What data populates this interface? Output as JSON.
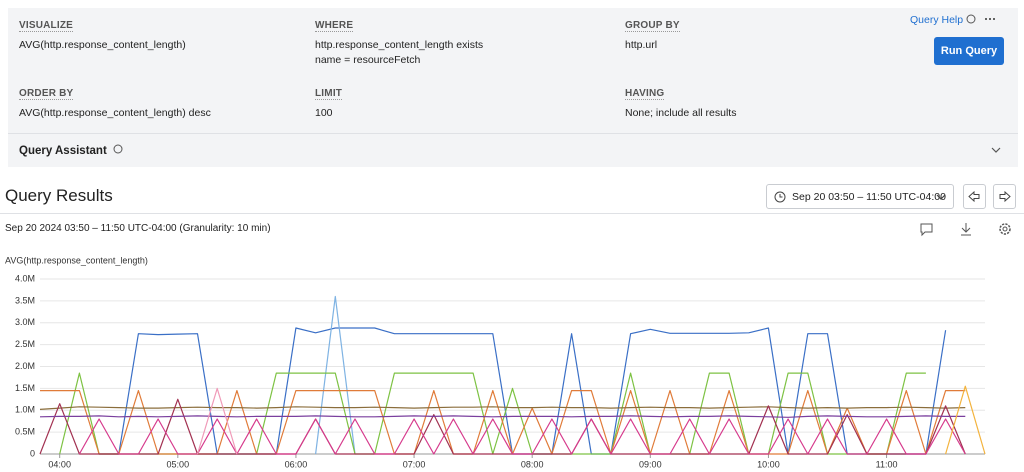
{
  "query_builder": {
    "help": "Query Help",
    "clauses": [
      {
        "label": "VISUALIZE",
        "values": [
          "AVG(http.response_content_length)"
        ]
      },
      {
        "label": "WHERE",
        "values": [
          "http.response_content_length exists",
          "name = resourceFetch"
        ]
      },
      {
        "label": "GROUP BY",
        "values": [
          "http.url"
        ]
      },
      {
        "label": "ORDER BY",
        "values": [
          "AVG(http.response_content_length) desc"
        ]
      },
      {
        "label": "LIMIT",
        "values": [
          "100"
        ]
      },
      {
        "label": "HAVING",
        "values": [
          "None; include all results"
        ]
      }
    ],
    "run_button": "Run Query",
    "assistant": "Query Assistant"
  },
  "results": {
    "title": "Query Results",
    "time_range": "Sep 20 03:50 – 11:50 UTC-04:00",
    "summary": "Sep 20 2024 03:50 – 11:50 UTC-04:00 (Granularity: 10 min)"
  },
  "chart_data": {
    "type": "line",
    "y_label": "AVG(http.response_content_length)",
    "x": [
      "03:50",
      "04:00",
      "04:10",
      "04:20",
      "04:30",
      "04:40",
      "04:50",
      "05:00",
      "05:10",
      "05:20",
      "05:30",
      "05:40",
      "05:50",
      "06:00",
      "06:10",
      "06:20",
      "06:30",
      "06:40",
      "06:50",
      "07:00",
      "07:10",
      "07:20",
      "07:30",
      "07:40",
      "07:50",
      "08:00",
      "08:10",
      "08:20",
      "08:30",
      "08:40",
      "08:50",
      "09:00",
      "09:10",
      "09:20",
      "09:30",
      "09:40",
      "09:50",
      "10:00",
      "10:10",
      "10:20",
      "10:30",
      "10:40",
      "10:50",
      "11:00",
      "11:10",
      "11:20",
      "11:30",
      "11:40",
      "11:50"
    ],
    "xlim": [
      "03:50",
      "11:50"
    ],
    "xticks": [
      "04:00",
      "05:00",
      "06:00",
      "07:00",
      "08:00",
      "09:00",
      "10:00",
      "11:00"
    ],
    "ylim": [
      0,
      4000000
    ],
    "yticks": [
      0,
      {
        "value": 500000,
        "label": "0.5M"
      },
      {
        "value": 1000000,
        "label": "1.0M"
      },
      {
        "value": 1500000,
        "label": "1.5M"
      },
      {
        "value": 2000000,
        "label": "2.0M"
      },
      {
        "value": 2500000,
        "label": "2.5M"
      },
      {
        "value": 3000000,
        "label": "3.0M"
      },
      {
        "value": 3500000,
        "label": "3.5M"
      },
      {
        "value": 4000000,
        "label": "4.0M"
      }
    ],
    "grid": true,
    "series": [
      {
        "color": "#3a6fc6",
        "values": [
          null,
          null,
          null,
          0,
          0,
          2750000,
          2730000,
          2740000,
          2750000,
          0,
          0,
          0,
          0,
          2880000,
          2770000,
          2880000,
          2880000,
          2880000,
          2750000,
          2750000,
          2750000,
          2750000,
          2750000,
          2750000,
          0,
          0,
          0,
          2750000,
          0,
          0,
          2750000,
          2850000,
          2760000,
          2760000,
          2760000,
          2760000,
          2770000,
          2880000,
          0,
          2750000,
          2750000,
          0,
          0,
          0,
          0,
          0,
          2830000,
          null,
          null
        ]
      },
      {
        "color": "#7fb3e3",
        "values": [
          null,
          null,
          null,
          null,
          null,
          null,
          null,
          null,
          null,
          null,
          null,
          null,
          null,
          null,
          0,
          3600000,
          0,
          null,
          null,
          null,
          null,
          null,
          null,
          null,
          null,
          null,
          null,
          null,
          null,
          null,
          null,
          null,
          null,
          null,
          null,
          null,
          null,
          null,
          null,
          null,
          null,
          null,
          null,
          null,
          null,
          null,
          null,
          null,
          null
        ]
      },
      {
        "color": "#7dc243",
        "values": [
          null,
          0,
          1850000,
          0,
          0,
          0,
          0,
          0,
          0,
          0,
          0,
          0,
          1850000,
          1850000,
          1850000,
          1850000,
          0,
          0,
          1850000,
          1850000,
          1850000,
          1850000,
          1850000,
          0,
          1500000,
          0,
          0,
          0,
          0,
          0,
          1850000,
          0,
          0,
          0,
          1850000,
          1850000,
          0,
          0,
          1850000,
          1850000,
          0,
          0,
          0,
          0,
          1850000,
          1850000,
          null,
          null,
          null
        ]
      },
      {
        "color": "#e07b39",
        "values": [
          1450000,
          1450000,
          1450000,
          0,
          0,
          1450000,
          0,
          0,
          0,
          0,
          1450000,
          0,
          0,
          1450000,
          1450000,
          1450000,
          1450000,
          1450000,
          0,
          0,
          1450000,
          0,
          0,
          1450000,
          0,
          1050000,
          0,
          1450000,
          1450000,
          0,
          1450000,
          0,
          1450000,
          0,
          0,
          1450000,
          0,
          0,
          0,
          1450000,
          0,
          1050000,
          0,
          0,
          1450000,
          0,
          1450000,
          1450000,
          null
        ]
      },
      {
        "color": "#8a6d3b",
        "values": [
          1020000,
          1050000,
          1080000,
          1070000,
          1060000,
          1050000,
          1050000,
          1060000,
          1070000,
          1060000,
          1060000,
          1050000,
          1060000,
          1080000,
          1070000,
          1060000,
          1060000,
          1070000,
          1060000,
          1050000,
          1060000,
          1070000,
          1070000,
          1080000,
          1060000,
          1060000,
          1070000,
          1060000,
          1060000,
          1050000,
          1060000,
          1070000,
          1060000,
          1060000,
          1050000,
          1060000,
          1070000,
          1080000,
          1060000,
          1050000,
          1060000,
          1050000,
          1060000,
          1060000,
          1070000,
          1060000,
          1050000,
          1060000,
          null
        ]
      },
      {
        "color": "#a23151",
        "values": [
          0,
          1150000,
          0,
          0,
          0,
          0,
          0,
          1250000,
          0,
          0,
          0,
          0,
          0,
          0,
          800000,
          0,
          0,
          0,
          0,
          0,
          900000,
          0,
          0,
          0,
          0,
          0,
          0,
          0,
          800000,
          0,
          0,
          0,
          0,
          0,
          0,
          0,
          0,
          1100000,
          0,
          0,
          0,
          900000,
          0,
          0,
          0,
          0,
          1100000,
          0,
          null
        ]
      },
      {
        "color": "#7a3f9e",
        "values": [
          850000,
          860000,
          860000,
          870000,
          850000,
          860000,
          850000,
          860000,
          870000,
          860000,
          850000,
          860000,
          860000,
          860000,
          870000,
          860000,
          850000,
          850000,
          860000,
          870000,
          860000,
          870000,
          860000,
          850000,
          860000,
          860000,
          860000,
          850000,
          860000,
          860000,
          870000,
          860000,
          850000,
          860000,
          860000,
          870000,
          860000,
          850000,
          840000,
          860000,
          870000,
          860000,
          850000,
          850000,
          860000,
          870000,
          860000,
          860000,
          null
        ]
      },
      {
        "color": "#d63a8c",
        "values": [
          null,
          null,
          0,
          800000,
          0,
          0,
          800000,
          0,
          0,
          800000,
          0,
          800000,
          0,
          0,
          800000,
          0,
          800000,
          0,
          0,
          800000,
          0,
          800000,
          0,
          800000,
          0,
          0,
          800000,
          0,
          800000,
          0,
          800000,
          0,
          0,
          800000,
          0,
          800000,
          0,
          0,
          800000,
          0,
          800000,
          0,
          0,
          800000,
          0,
          0,
          800000,
          0,
          null
        ]
      },
      {
        "color": "#f09ab8",
        "values": [
          null,
          null,
          null,
          null,
          null,
          null,
          null,
          null,
          0,
          1500000,
          0,
          null,
          null,
          null,
          null,
          null,
          null,
          null,
          null,
          null,
          null,
          null,
          null,
          null,
          null,
          null,
          null,
          null,
          null,
          null,
          null,
          null,
          null,
          null,
          null,
          null,
          null,
          null,
          null,
          null,
          null,
          null,
          null,
          null,
          null,
          null,
          null,
          null,
          null
        ]
      },
      {
        "color": "#f3b33d",
        "values": [
          null,
          null,
          null,
          null,
          null,
          null,
          null,
          null,
          null,
          null,
          null,
          null,
          null,
          null,
          null,
          null,
          null,
          null,
          null,
          null,
          null,
          null,
          null,
          null,
          null,
          null,
          null,
          null,
          null,
          null,
          null,
          null,
          null,
          null,
          null,
          null,
          null,
          null,
          null,
          null,
          null,
          null,
          null,
          null,
          null,
          null,
          0,
          1550000,
          0
        ]
      }
    ]
  }
}
